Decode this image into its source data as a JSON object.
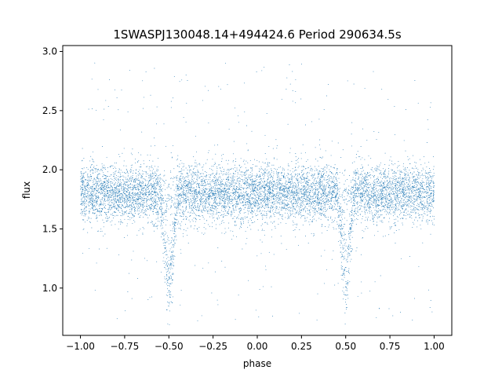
{
  "chart_data": {
    "type": "scatter",
    "title": "1SWASPJ130048.14+494424.6 Period 290634.5s",
    "xlabel": "phase",
    "ylabel": "flux",
    "xlim": [
      -1.1,
      1.1
    ],
    "ylim": [
      0.6,
      3.05
    ],
    "x_ticks": [
      -1.0,
      -0.75,
      -0.5,
      -0.25,
      0.0,
      0.25,
      0.5,
      0.75,
      1.0
    ],
    "x_tick_labels": [
      "−1.00",
      "−0.75",
      "−0.50",
      "−0.25",
      "0.00",
      "0.25",
      "0.50",
      "0.75",
      "1.00"
    ],
    "y_ticks": [
      1.0,
      1.5,
      2.0,
      2.5,
      3.0
    ],
    "y_tick_labels": [
      "1.0",
      "1.5",
      "2.0",
      "2.5",
      "3.0"
    ],
    "grid": false,
    "marker_color": "#1f77b4",
    "series": [
      {
        "description": "phase-folded light curve, baseline flux ~1.8 with eclipse dips to ~0.8 near phase -0.5 and 0.5",
        "baseline_flux": 1.8,
        "baseline_scatter": 0.12,
        "eclipse_phases": [
          -0.5,
          0.5
        ],
        "eclipse_min_flux": 0.8,
        "eclipse_width": 0.05,
        "x_range": [
          -1.0,
          1.0
        ],
        "outlier_range": [
          0.72,
          2.93
        ]
      }
    ]
  }
}
